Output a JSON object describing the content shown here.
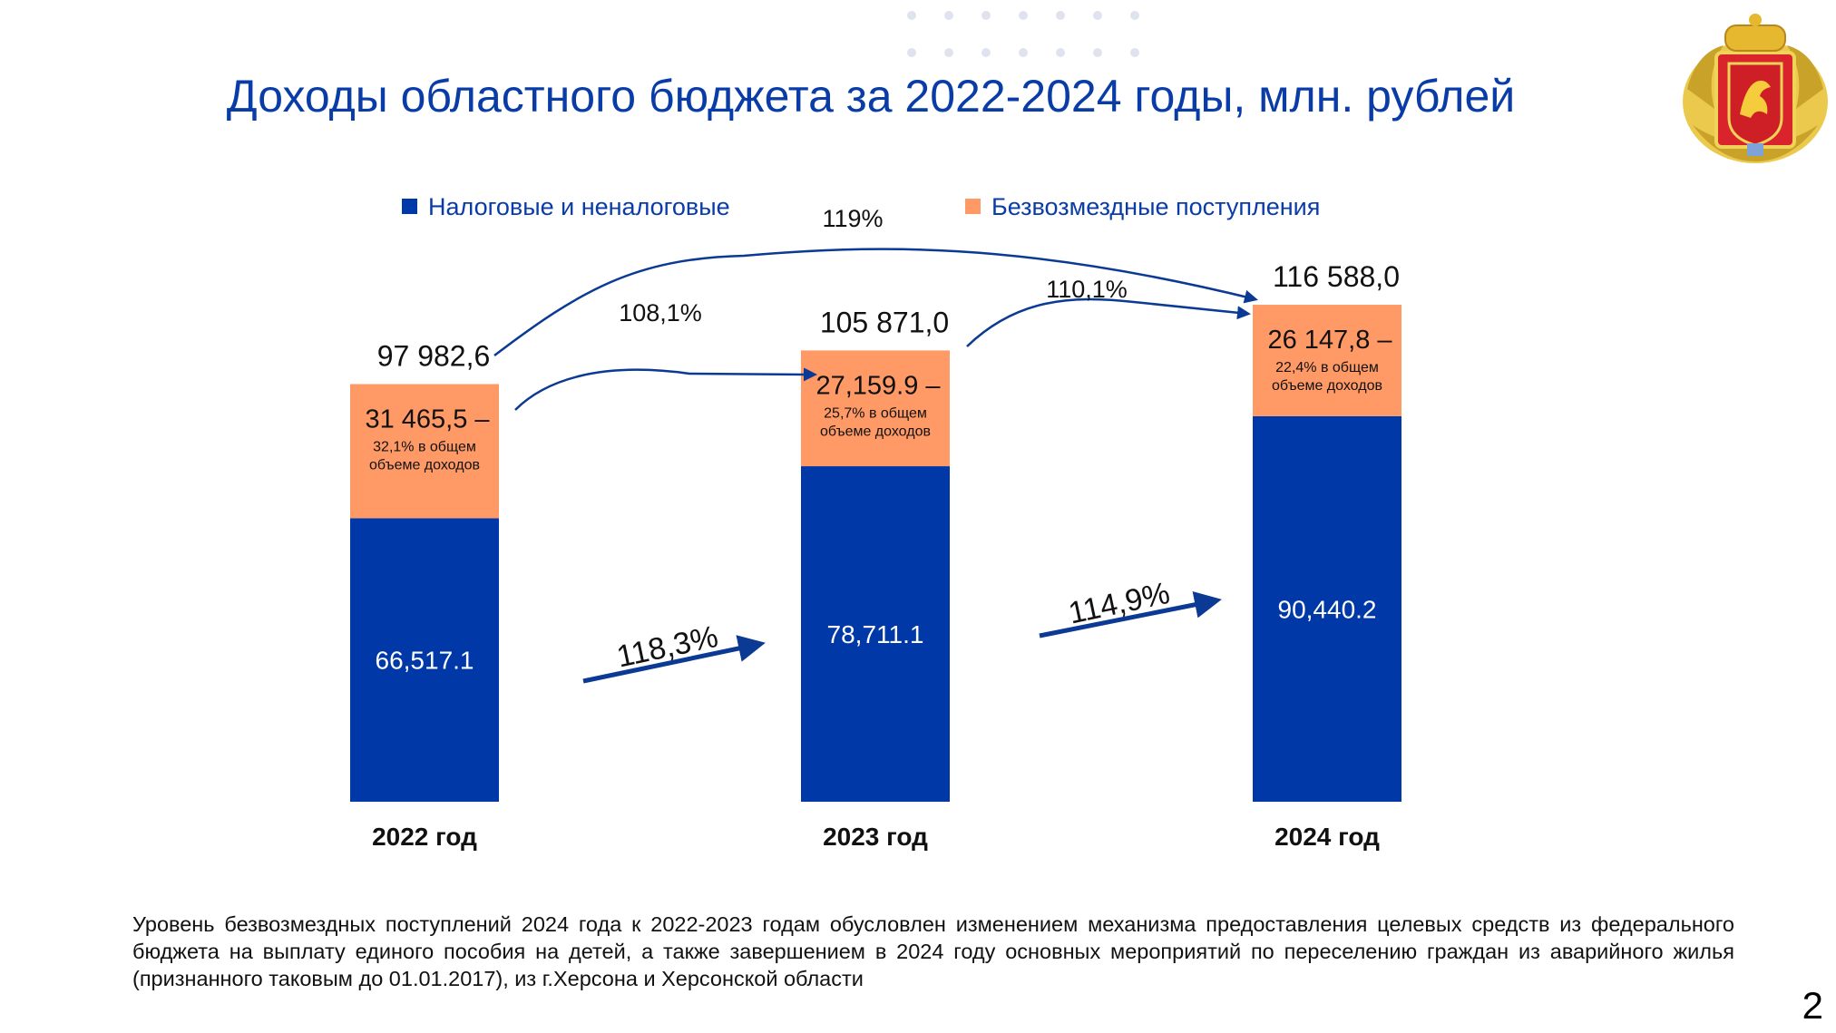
{
  "slide": {
    "title": "Доходы областного бюджета за 2022-2024 годы, млн. рублей",
    "footnote": "Уровень безвозмездных поступлений 2024 года к 2022-2023 годам обусловлен изменением механизма предоставления целевых средств из федерального бюджета на выплату единого пособия на детей, а также завершением в 2024 году основных  мероприятий по переселению граждан из аварийного жилья (признанного таковым до 01.01.2017), из г.Херсона и Херсонской области",
    "page_number": "2"
  },
  "chart_data": {
    "type": "bar",
    "stacked": true,
    "title": "Доходы областного бюджета за 2022-2024 годы, млн. рублей",
    "categories": [
      "2022 год",
      "2023 год",
      "2024 год"
    ],
    "series": [
      {
        "name": "Налоговые и неналоговые",
        "color": "#0038a8",
        "values": [
          66517.1,
          78711.1,
          90440.2
        ],
        "labels": [
          "66,517.1",
          "78,711.1",
          "90,440.2"
        ]
      },
      {
        "name": "Безвозмездные поступления",
        "color": "#ff9a66",
        "values": [
          31465.5,
          27159.9,
          26147.8
        ],
        "labels": [
          "31 465,5 –",
          "27,159.9 –",
          "26 147,8 –"
        ],
        "sublabels": [
          "32,1% в общем объеме доходов",
          "25,7% в общем объеме доходов",
          "22,4% в общем объеме доходов"
        ]
      }
    ],
    "totals": [
      97982.6,
      105871.0,
      116588.0
    ],
    "total_labels": [
      "97 982,6",
      "105 871,0",
      "116 588,0"
    ],
    "growth_totals": [
      {
        "from": "2022 год",
        "to": "2023 год",
        "label": "108,1%"
      },
      {
        "from": "2023 год",
        "to": "2024 год",
        "label": "110,1%"
      },
      {
        "from": "2022 год",
        "to": "2024 год",
        "label": "119%"
      }
    ],
    "growth_tax": [
      {
        "from": "2022 год",
        "to": "2023 год",
        "label": "118,3%"
      },
      {
        "from": "2023 год",
        "to": "2024 год",
        "label": "114,9%"
      }
    ],
    "ylim": [
      0,
      120000
    ],
    "legend": "top-center",
    "grid": false
  }
}
